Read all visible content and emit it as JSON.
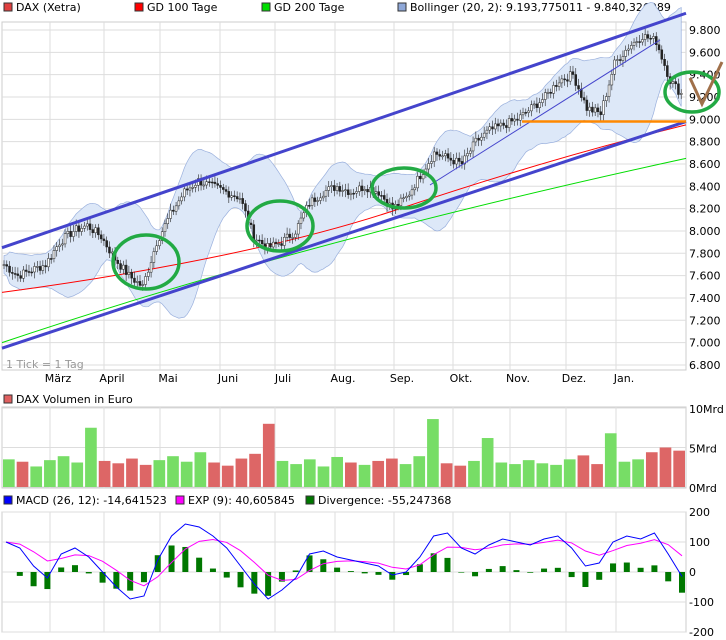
{
  "legend_main": [
    {
      "label": "DAX (Xetra)",
      "color": "#e04040"
    },
    {
      "label": "GD 100 Tage",
      "color": "#ff0000"
    },
    {
      "label": "GD 200 Tage",
      "color": "#00dd00"
    },
    {
      "label": "Bollinger (20, 2): 9.193,775011 - 9.840,326989",
      "color": "#8fa8d8"
    }
  ],
  "tick_note": "1 Tick = 1 Tag",
  "legend_volume": {
    "label": "DAX Volumen in Euro",
    "color": "#e06060"
  },
  "legend_macd": [
    {
      "label": "MACD (26, 12): -14,641523",
      "color": "#0000ff"
    },
    {
      "label": "EXP (9): 40,605845",
      "color": "#ff00ff"
    },
    {
      "label": "Divergence: -55,247368",
      "color": "#007700"
    }
  ],
  "chart_data": [
    {
      "type": "candlestick",
      "title": "DAX (Xetra)",
      "y_ticks": [
        "9.800",
        "9.600",
        "9.400",
        "9.200",
        "9.000",
        "8.800",
        "8.600",
        "8.400",
        "8.200",
        "8.000",
        "7.800",
        "7.600",
        "7.400",
        "7.200",
        "7.000",
        "6.800"
      ],
      "ylim": [
        6800,
        9900
      ],
      "x_ticks": [
        "März",
        "April",
        "Mai",
        "Juni",
        "Juli",
        "Aug.",
        "Sep.",
        "Okt.",
        "Nov.",
        "Dez.",
        "Jan."
      ],
      "weekly_close": [
        7700,
        7600,
        7650,
        7700,
        7900,
        8000,
        8050,
        7950,
        7750,
        7600,
        7500,
        7900,
        8150,
        8350,
        8450,
        8400,
        8350,
        8300,
        7950,
        7850,
        7900,
        8000,
        8250,
        8350,
        8400,
        8350,
        8400,
        8350,
        8200,
        8300,
        8500,
        8700,
        8650,
        8600,
        8800,
        8900,
        8950,
        9000,
        9100,
        9200,
        9350,
        9400,
        9100,
        9050,
        9500,
        9650,
        9750,
        9700,
        9350,
        9200
      ],
      "gd100_start_end": [
        7450,
        8950
      ],
      "gd200_start_end": [
        7000,
        8650
      ],
      "trend_channel": {
        "upper": [
          7850,
          9950
        ],
        "lower": [
          6950,
          8980
        ]
      },
      "support_level": 8980,
      "colors": {
        "up": "#00aa00",
        "down": "#dd2222",
        "channel": "#4444cc",
        "highlight": "#22aa44",
        "support": "#ff8800",
        "band": "#dde8f8"
      }
    },
    {
      "type": "bar",
      "title": "DAX Volumen in Euro",
      "y_ticks": [
        "10Mrd",
        "5Mrd",
        "0Mrd"
      ],
      "ylim": [
        0,
        10
      ],
      "values": [
        3.5,
        3.2,
        2.6,
        3.4,
        3.9,
        3.1,
        7.5,
        3.3,
        3.0,
        3.6,
        2.8,
        3.4,
        3.9,
        3.2,
        4.4,
        3.1,
        2.7,
        3.6,
        4.2,
        8.0,
        3.3,
        2.9,
        3.5,
        2.6,
        3.8,
        3.1,
        2.8,
        3.3,
        3.6,
        2.9,
        3.9,
        8.6,
        3.0,
        2.7,
        3.3,
        6.2,
        3.1,
        2.9,
        3.4,
        3.0,
        2.8,
        3.5,
        4.0,
        2.9,
        6.8,
        3.2,
        3.5,
        4.4,
        5.0,
        4.6
      ],
      "colors": {
        "up": "#77dd66",
        "down": "#dd6666"
      }
    },
    {
      "type": "line",
      "title": "MACD",
      "y_ticks": [
        "200",
        "100",
        "0",
        "-100",
        "-200"
      ],
      "ylim": [
        -200,
        200
      ],
      "macd": [
        100,
        80,
        20,
        -20,
        60,
        80,
        50,
        0,
        -50,
        -90,
        -80,
        40,
        120,
        160,
        150,
        120,
        80,
        20,
        -40,
        -90,
        -60,
        -20,
        60,
        70,
        50,
        40,
        30,
        20,
        -10,
        0,
        50,
        120,
        130,
        80,
        60,
        90,
        110,
        100,
        90,
        110,
        120,
        80,
        20,
        30,
        100,
        120,
        110,
        130,
        60,
        -15
      ],
      "colors": {
        "macd": "#0000ff",
        "signal": "#ff00ff",
        "divergence": "#007700"
      }
    }
  ]
}
